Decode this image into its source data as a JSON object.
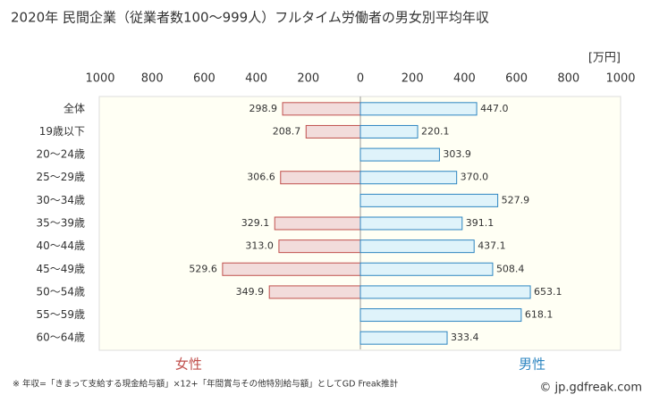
{
  "chart_data": {
    "type": "butterfly-bar",
    "title": "2020年 民間企業（従業者数100〜999人）フルタイム労働者の男女別平均年収",
    "unit": "[万円]",
    "categories": [
      "全体",
      "19歳以下",
      "20〜24歳",
      "25〜29歳",
      "30〜34歳",
      "35〜39歳",
      "40〜44歳",
      "45〜49歳",
      "50〜54歳",
      "55〜59歳",
      "60〜64歳"
    ],
    "series": [
      {
        "name": "女性",
        "side": "left",
        "color": "#c0504d",
        "fill": "#f2dcdb",
        "values": [
          298.9,
          208.7,
          null,
          306.6,
          null,
          329.1,
          313.0,
          529.6,
          349.9,
          null,
          null
        ],
        "value_labels": [
          "298.9",
          "208.7",
          null,
          "306.6",
          null,
          "329.1",
          "313.0",
          "529.6",
          "349.9",
          null,
          null
        ]
      },
      {
        "name": "男性",
        "side": "right",
        "color": "#2e86c1",
        "fill": "#dff3fa",
        "values": [
          447.0,
          220.1,
          303.9,
          370.0,
          527.9,
          391.1,
          437.1,
          508.4,
          653.1,
          618.1,
          333.4
        ],
        "value_labels": [
          "447.0",
          "220.1",
          "303.9",
          "370.0",
          "527.9",
          "391.1",
          "437.1",
          "508.4",
          "653.1",
          "618.1",
          "333.4"
        ]
      }
    ],
    "xlim": [
      0,
      1000
    ],
    "xticks": [
      0,
      200,
      400,
      600,
      800,
      1000
    ],
    "grid": false,
    "footnote": "※ 年収=「きまって支給する現金給与額」×12+「年間賞与その他特別給与額」としてGD Freak推計",
    "source": "© jp.gdfreak.com"
  }
}
